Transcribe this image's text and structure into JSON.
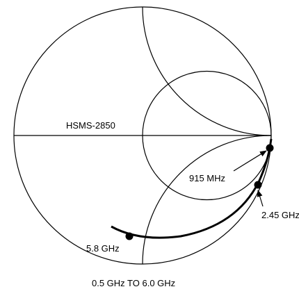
{
  "device_label": "HSMS-2850",
  "markers": [
    {
      "label": "915 MHz"
    },
    {
      "label": "2.45 GHz"
    },
    {
      "label": "5.8 GHz"
    }
  ],
  "caption": "0.5 GHz TO 6.0 GHz"
}
